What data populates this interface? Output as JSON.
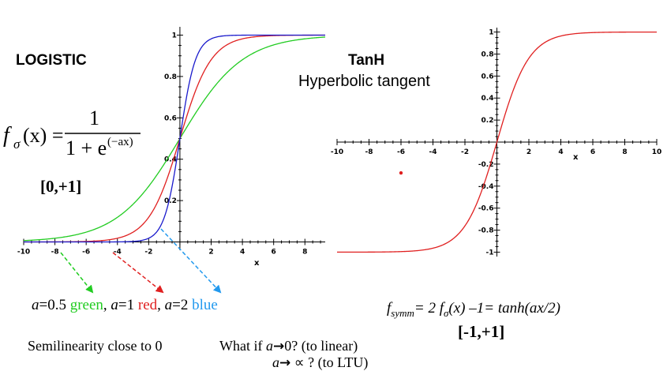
{
  "logistic": {
    "title": "LOGISTIC",
    "formula": {
      "lhs": "f",
      "sub": "σ",
      "arg": "(x) =",
      "numerator": "1",
      "den_base": "1 + e",
      "den_exp": "(−ax)"
    },
    "range": "[0,+1]"
  },
  "tanh": {
    "title": "TanH",
    "subtitle": "Hyperbolic tangent",
    "range": "[-1,+1]",
    "formula": {
      "f1": "f",
      "sub1": "symm",
      "mid": "= 2 f",
      "sub2": "σ",
      "rest": "(x) –1= tanh(ax/2)"
    }
  },
  "legend_line": {
    "a1": "a",
    "v1": "=0.5 ",
    "green": "green",
    "sep1": ", ",
    "a2": "a",
    "v2": "=1 ",
    "red": "red",
    "sep2": ", ",
    "a3": "a",
    "v3": "=2 ",
    "blue": "blue"
  },
  "notes": {
    "semilinear": "Semilinearity close to 0",
    "q1_prefix": "What if ",
    "q1_a": "a",
    "q1_arrow": "→",
    "q1_rest": "0? (to linear)",
    "q2_a": "a",
    "q2_arrow": "→",
    "q2_rest": " ∝ ? (to LTU)"
  },
  "colors": {
    "green": "#22cc22",
    "red": "#e02020",
    "blue": "#1a1acc",
    "axis": "#000000",
    "legend_blue": "#2299ee"
  },
  "chart_data": [
    {
      "type": "line",
      "xlabel": "x",
      "ylabel": "",
      "xlim": [
        -10,
        9.3
      ],
      "ylim": [
        -0.04,
        1.04
      ],
      "x_ticks": [
        -10,
        -8,
        -6,
        -4,
        -2,
        2,
        4,
        6,
        8
      ],
      "y_ticks": [
        0.2,
        0.4,
        0.6,
        0.8,
        1
      ],
      "y_tick_labels": [
        "0.2",
        "0.4",
        "0.6",
        "0.8",
        "1"
      ],
      "series": [
        {
          "color": "green",
          "function": "1/(1+exp(-0.5x))",
          "x": [
            -10,
            -8,
            -6,
            -4,
            -2,
            0,
            2,
            4,
            6,
            8,
            9
          ],
          "y": [
            0.007,
            0.018,
            0.047,
            0.119,
            0.269,
            0.5,
            0.731,
            0.881,
            0.953,
            0.982,
            0.989
          ]
        },
        {
          "color": "red",
          "function": "1/(1+exp(-x))",
          "x": [
            -10,
            -8,
            -6,
            -4,
            -2,
            0,
            2,
            4,
            6,
            8,
            9
          ],
          "y": [
            0.0,
            0.0,
            0.002,
            0.018,
            0.119,
            0.5,
            0.881,
            0.982,
            0.998,
            1.0,
            1.0
          ]
        },
        {
          "color": "blue",
          "function": "1/(1+exp(-2x))",
          "x": [
            -10,
            -8,
            -6,
            -4,
            -2,
            0,
            2,
            4,
            6,
            8,
            9
          ],
          "y": [
            0.0,
            0.0,
            0.0,
            0.0,
            0.018,
            0.5,
            0.982,
            1.0,
            1.0,
            1.0,
            1.0
          ]
        }
      ]
    },
    {
      "type": "line",
      "xlabel": "x",
      "ylabel": "",
      "xlim": [
        -10,
        10
      ],
      "ylim": [
        -1.04,
        1.04
      ],
      "x_ticks": [
        -10,
        -8,
        -6,
        -4,
        -2,
        2,
        4,
        6,
        8,
        10
      ],
      "y_ticks": [
        -1,
        -0.8,
        -0.6,
        -0.4,
        -0.2,
        0.2,
        0.4,
        0.6,
        0.8,
        1
      ],
      "y_tick_labels": [
        "-1",
        "-0.8",
        "-0.6",
        "-0.4",
        "-0.2",
        "0.2",
        "0.4",
        "0.6",
        "0.8",
        "1"
      ],
      "series": [
        {
          "color": "red",
          "function": "tanh(x/2)",
          "x": [
            -10,
            -8,
            -6,
            -4,
            -2,
            0,
            2,
            4,
            6,
            8,
            10
          ],
          "y": [
            -1.0,
            -0.999,
            -0.995,
            -0.964,
            -0.762,
            0.0,
            0.762,
            0.964,
            0.995,
            0.999,
            1.0
          ]
        }
      ],
      "annotations": [
        {
          "type": "point",
          "x": -6,
          "y": -0.28,
          "color": "red"
        }
      ]
    }
  ]
}
